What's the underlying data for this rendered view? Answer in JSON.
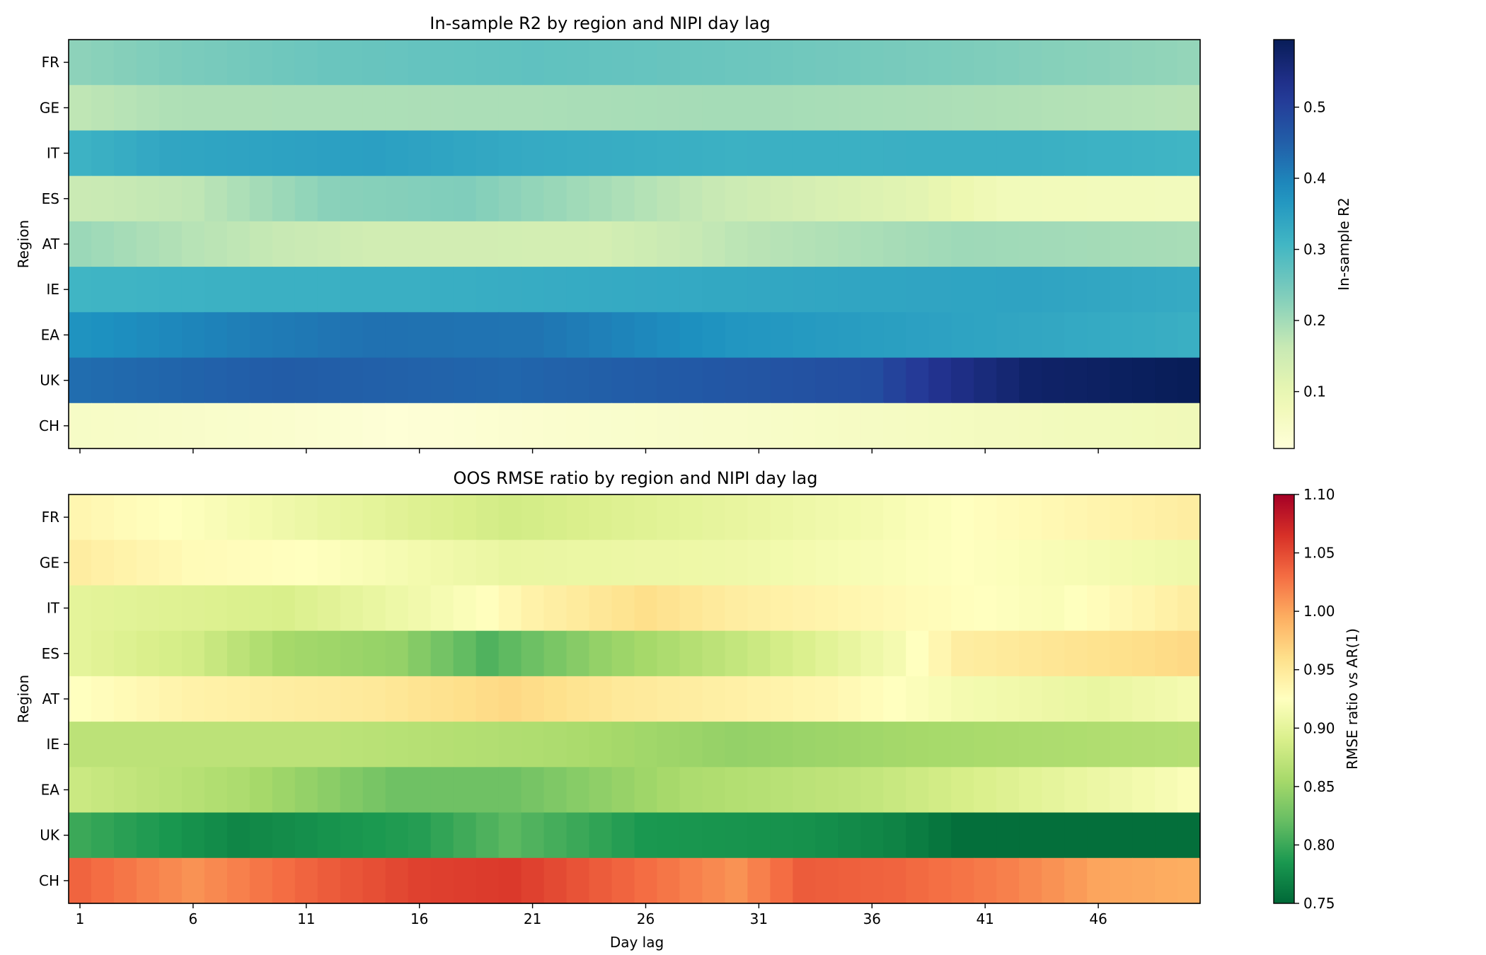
{
  "chart_data": [
    {
      "type": "heatmap",
      "id": "r2",
      "title": "In-sample R2 by region and NIPI day lag",
      "xlabel": "",
      "ylabel": "Region",
      "regions": [
        "FR",
        "GE",
        "IT",
        "ES",
        "AT",
        "IE",
        "EA",
        "UK",
        "CH"
      ],
      "days": [
        1,
        2,
        3,
        4,
        5,
        6,
        7,
        8,
        9,
        10,
        11,
        12,
        13,
        14,
        15,
        16,
        17,
        18,
        19,
        20,
        21,
        22,
        23,
        24,
        25,
        26,
        27,
        28,
        29,
        30,
        31,
        32,
        33,
        34,
        35,
        36,
        37,
        38,
        39,
        40,
        41,
        42,
        43,
        44,
        45,
        46,
        47,
        48,
        49,
        50
      ],
      "xticks": [
        1,
        6,
        11,
        16,
        21,
        26,
        31,
        36,
        41,
        46
      ],
      "xtick_labels_shown": false,
      "colormap": "YlGnBu",
      "vmin": 0.02,
      "vmax": 0.595,
      "colorbar": {
        "label": "In-sample R2",
        "ticks": [
          0.1,
          0.2,
          0.3,
          0.4,
          0.5
        ],
        "tick_labels": [
          "0.1",
          "0.2",
          "0.3",
          "0.4",
          "0.5"
        ]
      },
      "keypoints": [
        {
          "region": "FR",
          "points": [
            [
              1,
              0.222
            ],
            [
              5,
              0.238
            ],
            [
              12,
              0.26
            ],
            [
              21,
              0.272
            ],
            [
              30,
              0.258
            ],
            [
              40,
              0.238
            ],
            [
              50,
              0.215
            ]
          ]
        },
        {
          "region": "GE",
          "points": [
            [
              1,
              0.172
            ],
            [
              5,
              0.188
            ],
            [
              12,
              0.19
            ],
            [
              21,
              0.192
            ],
            [
              30,
              0.198
            ],
            [
              40,
              0.19
            ],
            [
              50,
              0.178
            ]
          ]
        },
        {
          "region": "IT",
          "points": [
            [
              1,
              0.315
            ],
            [
              5,
              0.34
            ],
            [
              14,
              0.352
            ],
            [
              21,
              0.33
            ],
            [
              30,
              0.318
            ],
            [
              42,
              0.322
            ],
            [
              50,
              0.31
            ]
          ]
        },
        {
          "region": "ES",
          "points": [
            [
              1,
              0.158
            ],
            [
              6,
              0.172
            ],
            [
              12,
              0.225
            ],
            [
              18,
              0.235
            ],
            [
              25,
              0.19
            ],
            [
              30,
              0.155
            ],
            [
              38,
              0.11
            ],
            [
              42,
              0.075
            ],
            [
              50,
              0.07
            ]
          ]
        },
        {
          "region": "AT",
          "points": [
            [
              1,
              0.208
            ],
            [
              6,
              0.18
            ],
            [
              14,
              0.145
            ],
            [
              24,
              0.14
            ],
            [
              30,
              0.175
            ],
            [
              40,
              0.205
            ],
            [
              50,
              0.195
            ]
          ]
        },
        {
          "region": "IE",
          "points": [
            [
              1,
              0.31
            ],
            [
              8,
              0.318
            ],
            [
              16,
              0.322
            ],
            [
              24,
              0.33
            ],
            [
              35,
              0.34
            ],
            [
              43,
              0.344
            ],
            [
              50,
              0.33
            ]
          ]
        },
        {
          "region": "EA",
          "points": [
            [
              1,
              0.375
            ],
            [
              8,
              0.405
            ],
            [
              14,
              0.425
            ],
            [
              21,
              0.42
            ],
            [
              30,
              0.37
            ],
            [
              40,
              0.345
            ],
            [
              50,
              0.322
            ]
          ]
        },
        {
          "region": "UK",
          "points": [
            [
              1,
              0.43
            ],
            [
              10,
              0.455
            ],
            [
              20,
              0.44
            ],
            [
              30,
              0.465
            ],
            [
              36,
              0.48
            ],
            [
              39,
              0.53
            ],
            [
              43,
              0.575
            ],
            [
              50,
              0.595
            ]
          ]
        },
        {
          "region": "CH",
          "points": [
            [
              1,
              0.055
            ],
            [
              10,
              0.04
            ],
            [
              15,
              0.025
            ],
            [
              22,
              0.04
            ],
            [
              32,
              0.052
            ],
            [
              40,
              0.065
            ],
            [
              50,
              0.078
            ]
          ]
        }
      ]
    },
    {
      "type": "heatmap",
      "id": "rmse",
      "title": "OOS RMSE ratio by region and NIPI day lag",
      "xlabel": "Day lag",
      "ylabel": "Region",
      "regions": [
        "FR",
        "GE",
        "IT",
        "ES",
        "AT",
        "IE",
        "EA",
        "UK",
        "CH"
      ],
      "days": [
        1,
        2,
        3,
        4,
        5,
        6,
        7,
        8,
        9,
        10,
        11,
        12,
        13,
        14,
        15,
        16,
        17,
        18,
        19,
        20,
        21,
        22,
        23,
        24,
        25,
        26,
        27,
        28,
        29,
        30,
        31,
        32,
        33,
        34,
        35,
        36,
        37,
        38,
        39,
        40,
        41,
        42,
        43,
        44,
        45,
        46,
        47,
        48,
        49,
        50
      ],
      "xticks": [
        1,
        6,
        11,
        16,
        21,
        26,
        31,
        36,
        41,
        46
      ],
      "xtick_labels_shown": true,
      "colormap": "RdYlGn_r",
      "vmin": 0.75,
      "vmax": 1.1,
      "colorbar": {
        "label": "RMSE ratio vs AR(1)",
        "ticks": [
          0.75,
          0.8,
          0.85,
          0.9,
          0.95,
          1.0,
          1.05,
          1.1
        ],
        "tick_labels": [
          "0.75",
          "0.80",
          "0.85",
          "0.90",
          "0.95",
          "1.00",
          "1.05",
          "1.10"
        ]
      },
      "keypoints": [
        {
          "region": "FR",
          "points": [
            [
              1,
              0.935
            ],
            [
              5,
              0.925
            ],
            [
              12,
              0.905
            ],
            [
              20,
              0.885
            ],
            [
              28,
              0.9
            ],
            [
              36,
              0.915
            ],
            [
              40,
              0.925
            ],
            [
              50,
              0.945
            ]
          ]
        },
        {
          "region": "GE",
          "points": [
            [
              1,
              0.945
            ],
            [
              6,
              0.93
            ],
            [
              11,
              0.925
            ],
            [
              20,
              0.905
            ],
            [
              30,
              0.91
            ],
            [
              40,
              0.925
            ],
            [
              50,
              0.91
            ]
          ]
        },
        {
          "region": "IT",
          "points": [
            [
              1,
              0.9
            ],
            [
              10,
              0.89
            ],
            [
              18,
              0.92
            ],
            [
              21,
              0.94
            ],
            [
              26,
              0.96
            ],
            [
              30,
              0.945
            ],
            [
              38,
              0.93
            ],
            [
              44,
              0.92
            ],
            [
              50,
              0.945
            ]
          ]
        },
        {
          "region": "ES",
          "points": [
            [
              1,
              0.9
            ],
            [
              6,
              0.885
            ],
            [
              10,
              0.855
            ],
            [
              15,
              0.845
            ],
            [
              19,
              0.81
            ],
            [
              24,
              0.845
            ],
            [
              30,
              0.875
            ],
            [
              37,
              0.915
            ],
            [
              40,
              0.945
            ],
            [
              50,
              0.965
            ]
          ]
        },
        {
          "region": "AT",
          "points": [
            [
              1,
              0.925
            ],
            [
              6,
              0.94
            ],
            [
              14,
              0.95
            ],
            [
              20,
              0.965
            ],
            [
              25,
              0.95
            ],
            [
              34,
              0.935
            ],
            [
              40,
              0.915
            ],
            [
              46,
              0.905
            ],
            [
              50,
              0.915
            ]
          ]
        },
        {
          "region": "IE",
          "points": [
            [
              1,
              0.87
            ],
            [
              12,
              0.87
            ],
            [
              22,
              0.86
            ],
            [
              30,
              0.845
            ],
            [
              38,
              0.855
            ],
            [
              50,
              0.865
            ]
          ]
        },
        {
          "region": "EA",
          "points": [
            [
              1,
              0.88
            ],
            [
              8,
              0.86
            ],
            [
              15,
              0.825
            ],
            [
              20,
              0.825
            ],
            [
              28,
              0.86
            ],
            [
              36,
              0.875
            ],
            [
              42,
              0.895
            ],
            [
              50,
              0.92
            ]
          ]
        },
        {
          "region": "UK",
          "points": [
            [
              1,
              0.8
            ],
            [
              8,
              0.772
            ],
            [
              16,
              0.79
            ],
            [
              20,
              0.815
            ],
            [
              26,
              0.785
            ],
            [
              33,
              0.78
            ],
            [
              37,
              0.77
            ],
            [
              40,
              0.755
            ],
            [
              50,
              0.755
            ]
          ]
        },
        {
          "region": "CH",
          "points": [
            [
              1,
              1.035
            ],
            [
              6,
              1.01
            ],
            [
              12,
              1.04
            ],
            [
              16,
              1.055
            ],
            [
              20,
              1.06
            ],
            [
              26,
              1.03
            ],
            [
              30,
              1.01
            ],
            [
              33,
              1.04
            ],
            [
              37,
              1.035
            ],
            [
              42,
              1.02
            ],
            [
              46,
              1.0
            ],
            [
              50,
              0.995
            ]
          ]
        }
      ]
    }
  ]
}
